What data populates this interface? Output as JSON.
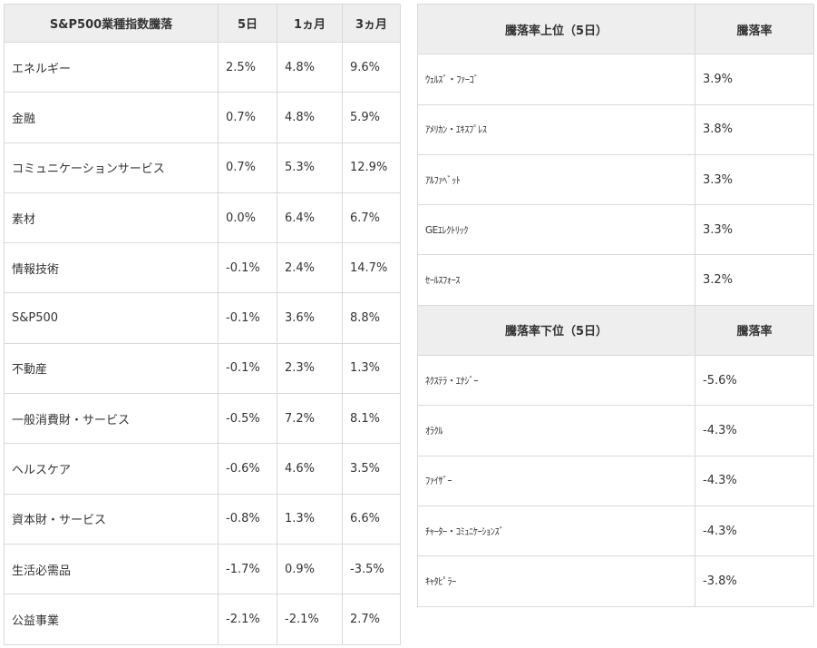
{
  "sector_table": {
    "headers": [
      "S&P500業種指数騰落",
      "5日",
      "1ヵ月",
      "3ヵ月"
    ],
    "rows": [
      [
        "エネルギー",
        "2.5%",
        "4.8%",
        "9.6%"
      ],
      [
        "金融",
        "0.7%",
        "4.8%",
        "5.9%"
      ],
      [
        "コミュニケーションサービス",
        "0.7%",
        "5.3%",
        "12.9%"
      ],
      [
        "素材",
        "0.0%",
        "6.4%",
        "6.7%"
      ],
      [
        "情報技術",
        "-0.1%",
        "2.4%",
        "14.7%"
      ],
      [
        "S&P500",
        "-0.1%",
        "3.6%",
        "8.8%"
      ],
      [
        "不動産",
        "-0.1%",
        "2.3%",
        "1.3%"
      ],
      [
        "一般消費財・サービス",
        "-0.5%",
        "7.2%",
        "8.1%"
      ],
      [
        "ヘルスケア",
        "-0.6%",
        "4.6%",
        "3.5%"
      ],
      [
        "資本財・サービス",
        "-0.8%",
        "1.3%",
        "6.6%"
      ],
      [
        "生活必需品",
        "-1.7%",
        "0.9%",
        "-3.5%"
      ],
      [
        "公益事業",
        "-2.1%",
        "-2.1%",
        "2.7%"
      ]
    ]
  },
  "top_movers": {
    "header": [
      "騰落率上位（5日）",
      "騰落率"
    ],
    "rows": [
      [
        "ｳｪﾙｽﾞ・ﾌｧｰｺﾞ",
        "3.9%"
      ],
      [
        "ｱﾒﾘｶﾝ・ｴｷｽﾌﾟﾚｽ",
        "3.8%"
      ],
      [
        "ｱﾙﾌｧﾍﾞｯﾄ",
        "3.3%"
      ],
      [
        "GEｴﾚｸﾄﾘｯｸ",
        "3.3%"
      ],
      [
        "ｾｰﾙｽﾌｫｰｽ",
        "3.2%"
      ]
    ]
  },
  "bottom_movers": {
    "header": [
      "騰落率下位（5日）",
      "騰落率"
    ],
    "rows": [
      [
        "ﾈｸｽﾃﾗ・ｴﾅｼﾞｰ",
        "-5.6%"
      ],
      [
        "ｵﾗｸﾙ",
        "-4.3%"
      ],
      [
        "ﾌｧｲｻﾞｰ",
        "-4.3%"
      ],
      [
        "ﾁｬｰﾀｰ・ｺﾐｭﾆｹｰｼｮﾝｽﾞ",
        "-4.3%"
      ],
      [
        "ｷｬﾀﾋﾟﾗｰ",
        "-3.8%"
      ]
    ]
  }
}
